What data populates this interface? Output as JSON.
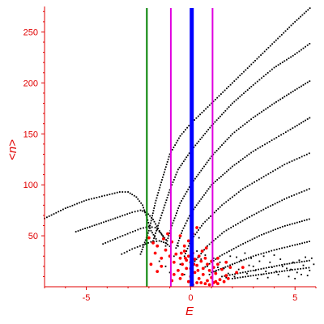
{
  "chart_data": {
    "type": "scatter",
    "title": "",
    "xlabel": "E",
    "ylabel": "<n>",
    "xlim": [
      -7,
      6
    ],
    "ylim": [
      0,
      275
    ],
    "xticks": [
      -5,
      0,
      5
    ],
    "yticks": [
      50,
      100,
      150,
      200,
      250
    ],
    "x_tick_labels": [
      "-5",
      "0",
      "5"
    ],
    "y_tick_labels": [
      "50",
      "100",
      "150",
      "200",
      "250"
    ],
    "grid": false,
    "legend": "none",
    "colors": {
      "axis": "#e00000",
      "black_series": "#000000",
      "red_series": "#ff0000",
      "green_line": "#008000",
      "magenta_lines": "#e000e0",
      "blue_line": "#0000ff"
    },
    "vertical_lines": [
      {
        "x": -2.1,
        "color": "#008000",
        "width": 2
      },
      {
        "x": -0.95,
        "color": "#e000e0",
        "width": 2
      },
      {
        "x": 0.05,
        "color": "#0000ff",
        "width": 5
      },
      {
        "x": 1.05,
        "color": "#e000e0",
        "width": 2
      }
    ],
    "black_curves": [
      {
        "points": [
          [
            -7.0,
            67
          ],
          [
            -6.0,
            77
          ],
          [
            -5.0,
            85
          ],
          [
            -4.0,
            90
          ],
          [
            -3.4,
            93
          ],
          [
            -3.0,
            93
          ],
          [
            -2.6,
            88
          ],
          [
            -2.3,
            80
          ],
          [
            -2.1,
            68
          ],
          [
            -1.9,
            55
          ],
          [
            -1.6,
            45
          ]
        ]
      },
      {
        "points": [
          [
            -5.5,
            54
          ],
          [
            -4.5,
            61
          ],
          [
            -3.5,
            68
          ],
          [
            -2.8,
            73
          ],
          [
            -2.4,
            75
          ],
          [
            -2.1,
            73
          ],
          [
            -1.8,
            66
          ],
          [
            -1.5,
            55
          ],
          [
            -1.2,
            45
          ]
        ]
      },
      {
        "points": [
          [
            -4.2,
            42
          ],
          [
            -3.5,
            48
          ],
          [
            -2.9,
            53
          ],
          [
            -2.4,
            57
          ],
          [
            -2.0,
            59
          ],
          [
            -1.7,
            58
          ],
          [
            -1.4,
            52
          ],
          [
            -1.1,
            44
          ]
        ]
      },
      {
        "points": [
          [
            -3.3,
            32
          ],
          [
            -2.8,
            37
          ],
          [
            -2.3,
            41
          ],
          [
            -1.9,
            44
          ],
          [
            -1.5,
            45
          ],
          [
            -1.2,
            43
          ],
          [
            -0.9,
            38
          ]
        ]
      },
      {
        "points": [
          [
            -2.4,
            32
          ],
          [
            -2.0,
            55
          ],
          [
            -1.7,
            82
          ],
          [
            -1.3,
            110
          ],
          [
            -1.0,
            130
          ],
          [
            -0.5,
            148
          ],
          [
            0.0,
            160
          ],
          [
            1.0,
            180
          ],
          [
            2.0,
            200
          ],
          [
            3.0,
            220
          ],
          [
            4.0,
            240
          ],
          [
            5.0,
            260
          ],
          [
            5.8,
            275
          ]
        ]
      },
      {
        "points": [
          [
            -1.8,
            45
          ],
          [
            -1.4,
            70
          ],
          [
            -1.0,
            95
          ],
          [
            -0.6,
            115
          ],
          [
            0.0,
            133
          ],
          [
            1.0,
            158
          ],
          [
            2.0,
            180
          ],
          [
            3.0,
            198
          ],
          [
            4.0,
            215
          ],
          [
            5.0,
            228
          ],
          [
            5.8,
            240
          ]
        ]
      },
      {
        "points": [
          [
            -1.2,
            40
          ],
          [
            -0.9,
            60
          ],
          [
            -0.5,
            82
          ],
          [
            0.0,
            100
          ],
          [
            1.0,
            128
          ],
          [
            2.0,
            150
          ],
          [
            3.0,
            166
          ],
          [
            4.0,
            180
          ],
          [
            5.0,
            193
          ],
          [
            5.8,
            203
          ]
        ]
      },
      {
        "points": [
          [
            -0.7,
            38
          ],
          [
            -0.4,
            55
          ],
          [
            0.0,
            72
          ],
          [
            1.0,
            100
          ],
          [
            2.0,
            118
          ],
          [
            3.0,
            133
          ],
          [
            4.0,
            145
          ],
          [
            5.0,
            157
          ],
          [
            5.8,
            167
          ]
        ]
      },
      {
        "points": [
          [
            -0.3,
            30
          ],
          [
            0.0,
            45
          ],
          [
            0.6,
            62
          ],
          [
            1.5,
            80
          ],
          [
            2.5,
            96
          ],
          [
            3.5,
            108
          ],
          [
            4.5,
            120
          ],
          [
            5.8,
            132
          ]
        ]
      },
      {
        "points": [
          [
            0.2,
            25
          ],
          [
            0.8,
            40
          ],
          [
            1.6,
            54
          ],
          [
            2.6,
            66
          ],
          [
            3.6,
            77
          ],
          [
            4.6,
            87
          ],
          [
            5.8,
            97
          ]
        ]
      },
      {
        "points": [
          [
            0.6,
            18
          ],
          [
            1.4,
            30
          ],
          [
            2.4,
            41
          ],
          [
            3.4,
            51
          ],
          [
            4.4,
            59
          ],
          [
            5.8,
            67
          ]
        ]
      },
      {
        "points": [
          [
            1.0,
            14
          ],
          [
            2.0,
            22
          ],
          [
            3.0,
            30
          ],
          [
            4.0,
            36
          ],
          [
            5.0,
            41
          ],
          [
            5.8,
            45
          ]
        ]
      },
      {
        "points": [
          [
            1.5,
            10
          ],
          [
            2.5,
            14
          ],
          [
            3.5,
            18
          ],
          [
            4.5,
            22
          ],
          [
            5.8,
            26
          ]
        ]
      },
      {
        "points": [
          [
            2.0,
            8
          ],
          [
            3.0,
            11
          ],
          [
            4.0,
            14
          ],
          [
            5.0,
            17
          ],
          [
            5.8,
            19
          ]
        ]
      }
    ],
    "black_scatter": [
      [
        0.8,
        20
      ],
      [
        1.2,
        15
      ],
      [
        1.6,
        18
      ],
      [
        2.0,
        22
      ],
      [
        2.3,
        17
      ],
      [
        2.7,
        13
      ],
      [
        3.0,
        20
      ],
      [
        3.3,
        25
      ],
      [
        3.6,
        15
      ],
      [
        3.9,
        19
      ],
      [
        4.2,
        12
      ],
      [
        4.5,
        22
      ],
      [
        4.8,
        17
      ],
      [
        5.1,
        14
      ],
      [
        5.4,
        21
      ],
      [
        5.7,
        16
      ],
      [
        1.4,
        24
      ],
      [
        2.1,
        10
      ],
      [
        2.9,
        28
      ],
      [
        3.7,
        9
      ],
      [
        4.3,
        27
      ],
      [
        5.0,
        8
      ],
      [
        5.5,
        29
      ],
      [
        1.9,
        30
      ],
      [
        2.6,
        33
      ],
      [
        3.4,
        12
      ],
      [
        4.0,
        31
      ],
      [
        4.7,
        10
      ],
      [
        5.2,
        26
      ],
      [
        1.1,
        28
      ],
      [
        0.9,
        12
      ],
      [
        1.7,
        9
      ],
      [
        2.4,
        26
      ],
      [
        3.1,
        16
      ],
      [
        3.8,
        24
      ],
      [
        4.6,
        18
      ],
      [
        5.3,
        12
      ],
      [
        5.9,
        22
      ],
      [
        0.7,
        31
      ],
      [
        1.3,
        19
      ],
      [
        2.8,
        21
      ],
      [
        3.5,
        30
      ],
      [
        4.1,
        15
      ],
      [
        4.9,
        24
      ],
      [
        5.6,
        11
      ],
      [
        1.8,
        13
      ],
      [
        2.2,
        29
      ],
      [
        3.2,
        8
      ],
      [
        4.4,
        20
      ],
      [
        5.8,
        28
      ],
      [
        -1.5,
        25
      ],
      [
        -1.2,
        20
      ],
      [
        -0.8,
        30
      ],
      [
        -0.5,
        22
      ],
      [
        -1.0,
        14
      ],
      [
        -0.3,
        12
      ],
      [
        0.3,
        35
      ],
      [
        0.5,
        27
      ],
      [
        -0.6,
        40
      ],
      [
        0.4,
        48
      ]
    ],
    "red_scatter": [
      [
        -2.0,
        48
      ],
      [
        -1.8,
        43
      ],
      [
        -1.6,
        40
      ],
      [
        -1.3,
        47
      ],
      [
        -1.1,
        52
      ],
      [
        -0.9,
        44
      ],
      [
        -1.7,
        33
      ],
      [
        -1.4,
        28
      ],
      [
        -1.2,
        36
      ],
      [
        -1.0,
        30
      ],
      [
        -0.8,
        24
      ],
      [
        -0.7,
        32
      ],
      [
        -0.5,
        28
      ],
      [
        -0.4,
        22
      ],
      [
        -0.3,
        35
      ],
      [
        -0.2,
        26
      ],
      [
        -0.1,
        30
      ],
      [
        0.0,
        24
      ],
      [
        0.1,
        33
      ],
      [
        0.2,
        27
      ],
      [
        0.3,
        21
      ],
      [
        0.4,
        30
      ],
      [
        0.5,
        25
      ],
      [
        0.6,
        18
      ],
      [
        0.7,
        28
      ],
      [
        0.8,
        22
      ],
      [
        0.9,
        16
      ],
      [
        1.0,
        25
      ],
      [
        1.1,
        19
      ],
      [
        1.2,
        13
      ],
      [
        1.3,
        22
      ],
      [
        1.5,
        17
      ],
      [
        1.7,
        11
      ],
      [
        1.9,
        19
      ],
      [
        2.2,
        14
      ],
      [
        2.5,
        19
      ],
      [
        -0.6,
        16
      ],
      [
        -0.4,
        12
      ],
      [
        -0.2,
        18
      ],
      [
        0.0,
        10
      ],
      [
        0.2,
        14
      ],
      [
        0.4,
        8
      ],
      [
        0.6,
        12
      ],
      [
        0.8,
        6
      ],
      [
        1.0,
        9
      ],
      [
        1.2,
        5
      ],
      [
        -0.8,
        12
      ],
      [
        -0.5,
        8
      ],
      [
        -0.1,
        5
      ],
      [
        0.3,
        4
      ],
      [
        0.7,
        3
      ],
      [
        1.1,
        4
      ],
      [
        1.4,
        7
      ],
      [
        -0.3,
        40
      ],
      [
        -0.1,
        45
      ],
      [
        0.1,
        52
      ],
      [
        0.3,
        58
      ],
      [
        -0.5,
        50
      ],
      [
        -1.4,
        20
      ],
      [
        -1.6,
        15
      ],
      [
        -1.9,
        22
      ],
      [
        -0.9,
        6
      ],
      [
        0.1,
        2
      ],
      [
        0.5,
        4
      ],
      [
        0.9,
        2
      ],
      [
        1.3,
        3
      ],
      [
        1.6,
        5
      ],
      [
        1.8,
        8
      ],
      [
        0.0,
        18
      ],
      [
        0.15,
        22
      ],
      [
        -0.25,
        28
      ],
      [
        0.35,
        16
      ],
      [
        0.55,
        35
      ],
      [
        -0.45,
        33
      ],
      [
        0.75,
        38
      ],
      [
        1.3,
        28
      ],
      [
        1.7,
        24
      ]
    ]
  }
}
